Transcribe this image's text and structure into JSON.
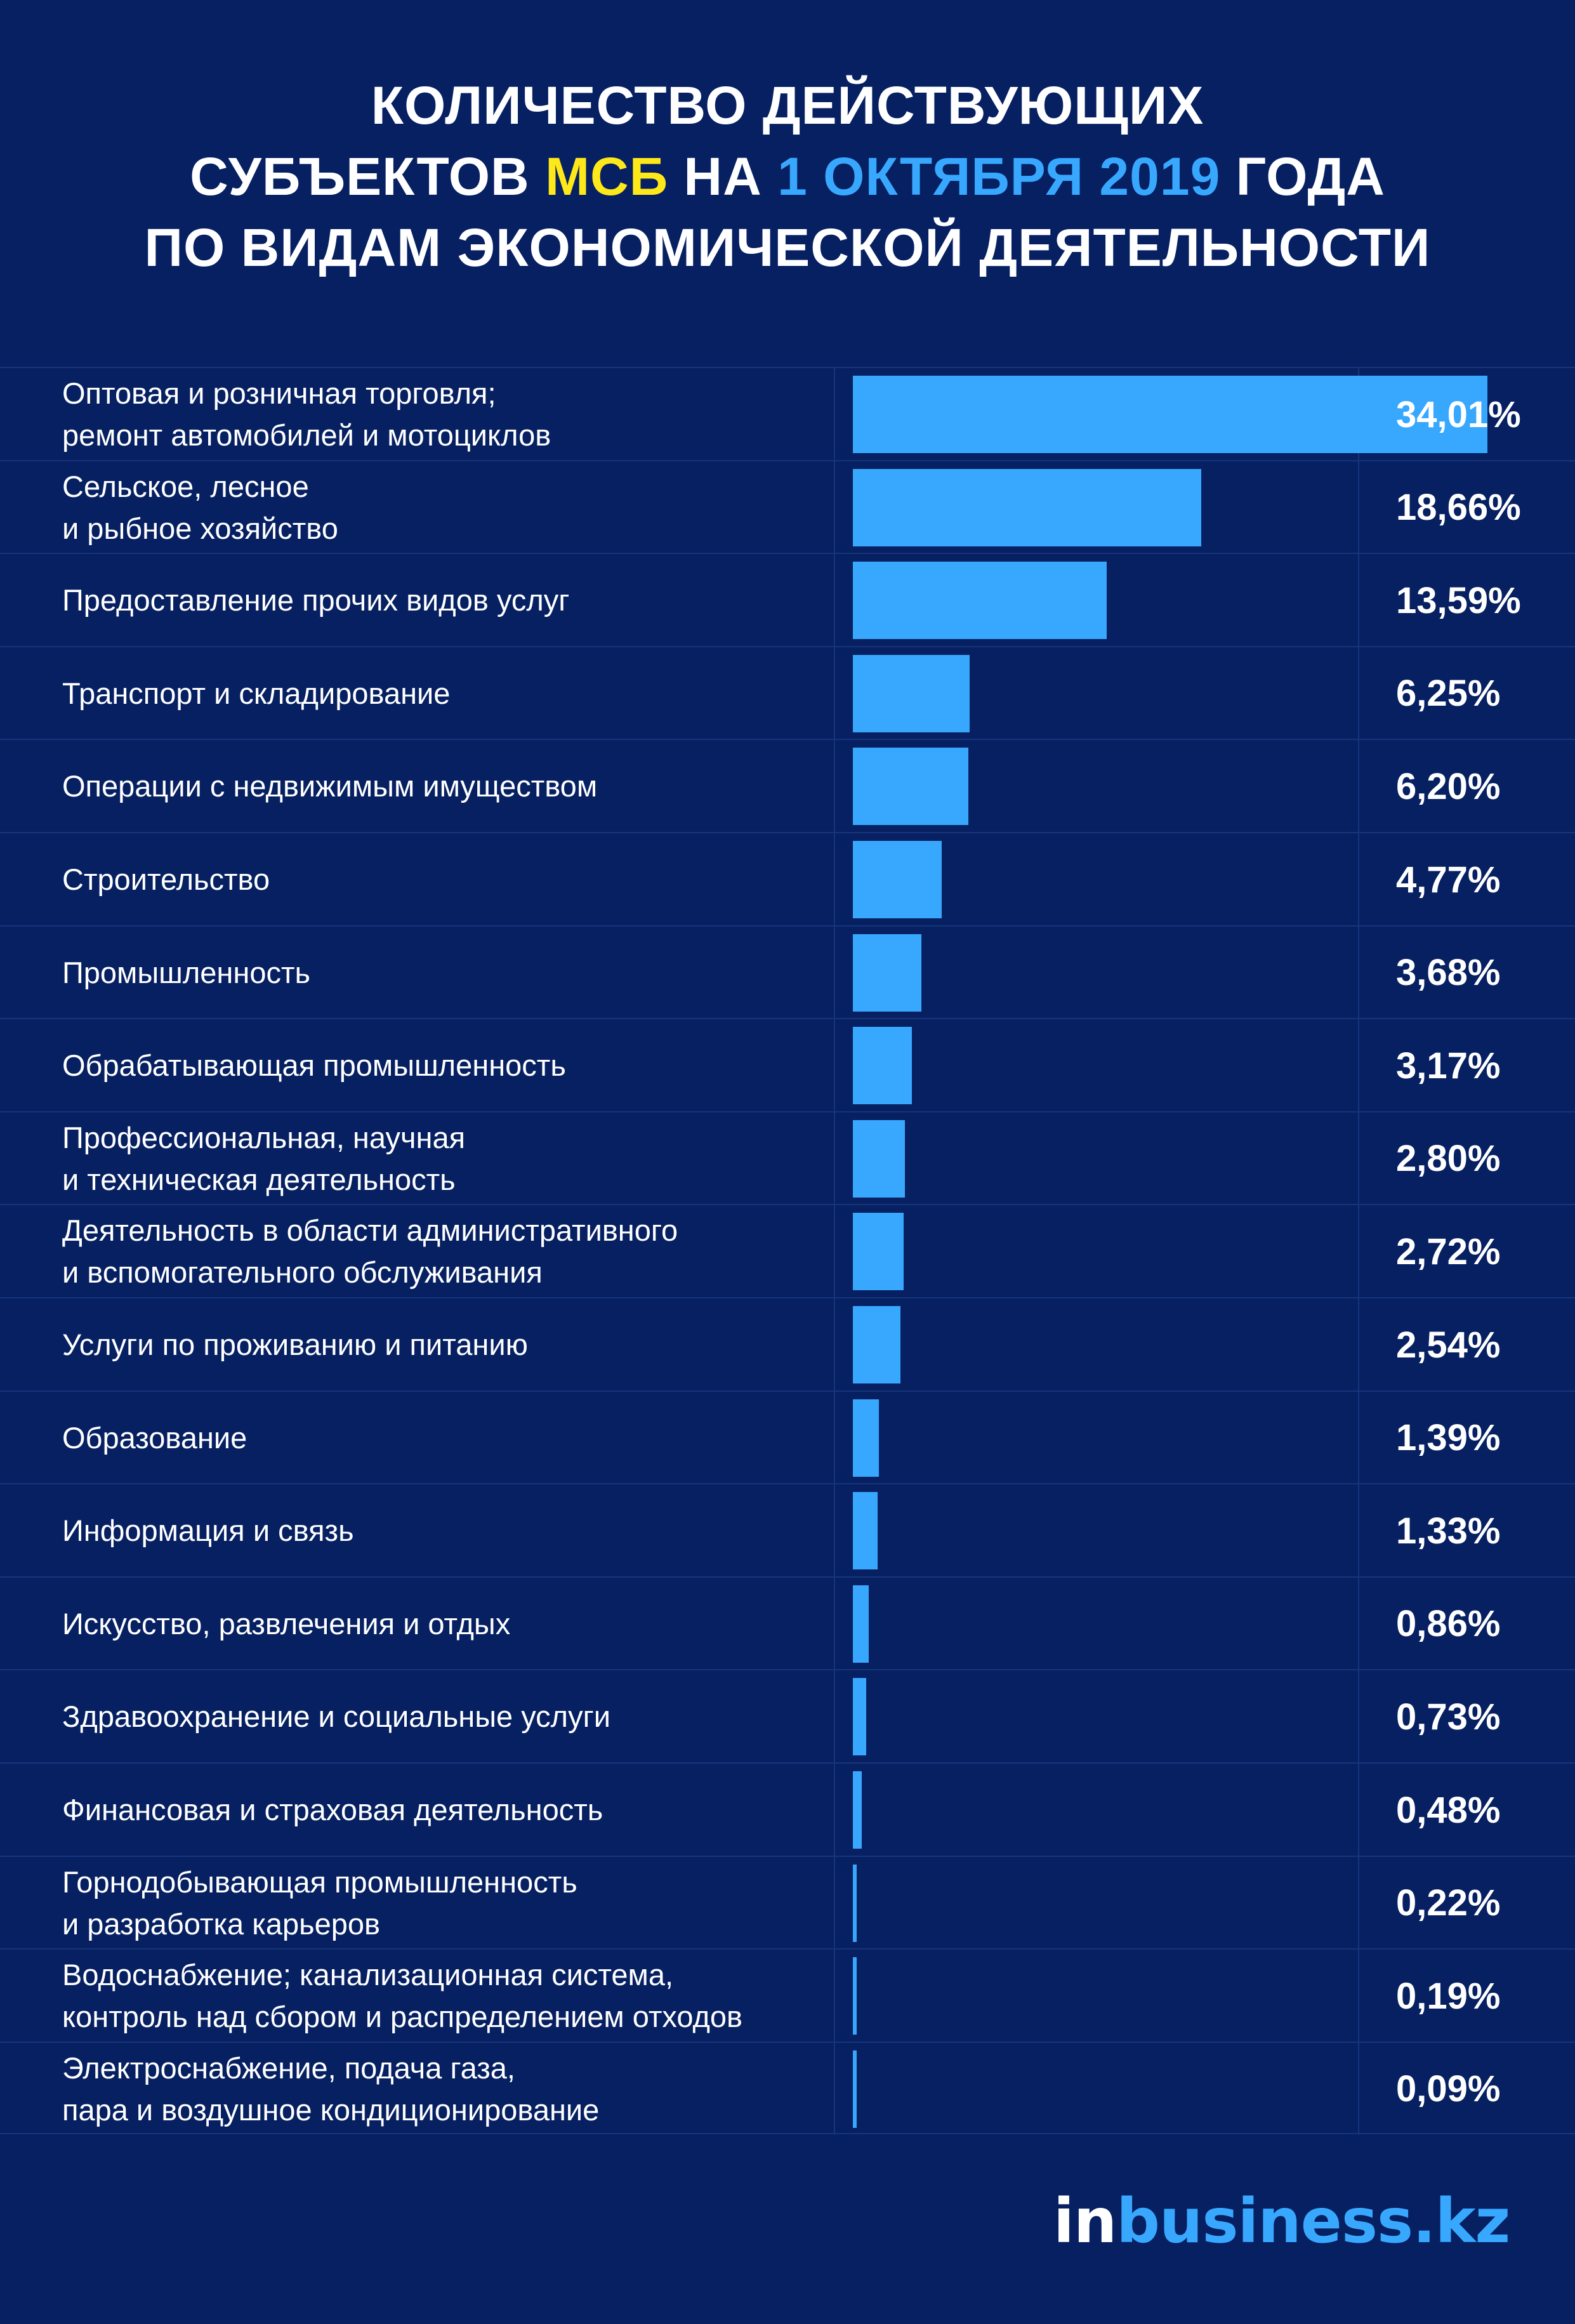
{
  "title": {
    "line1": "КОЛИЧЕСТВО ДЕЙСТВУЮЩИХ",
    "line2_a": "СУБЪЕКТОВ ",
    "line2_highlight_yellow": "МСБ",
    "line2_b": " НА ",
    "line2_highlight_blue": "1 ОКТЯБРЯ 2019",
    "line2_c": " ГОДА",
    "line3": "ПО ВИДАМ ЭКОНОМИЧЕСКОЙ ДЕЯТЕЛЬНОСТИ"
  },
  "colors": {
    "background": "#062062",
    "bar": "#38a8ff",
    "highlight_yellow": "#ffe81a",
    "highlight_blue": "#38a8ff",
    "grid": "#17357c"
  },
  "logo": {
    "part1": "in",
    "part2": "business.kz"
  },
  "chart_data": {
    "type": "bar",
    "orientation": "horizontal",
    "xlim": [
      0,
      34.01
    ],
    "categories": [
      "Оптовая и розничная торговля;\nремонт автомобилей и мотоциклов",
      "Сельское, лесное\nи рыбное хозяйство",
      "Предоставление прочих видов услуг",
      "Транспорт и складирование",
      "Операции с недвижимым имуществом",
      "Строительство",
      "Промышленность",
      "Обрабатывающая промышленность",
      "Профессиональная, научная\nи техническая деятельность",
      "Деятельность в области административного\nи вспомогательного обслуживания",
      "Услуги по проживанию и питанию",
      "Образование",
      "Информация и связь",
      "Искусство, развлечения и отдых",
      "Здравоохранение и социальные услуги",
      "Финансовая и страховая деятельность",
      "Горнодобывающая промышленность\nи разработка карьеров",
      "Водоснабжение; канализационная система,\nконтроль над сбором и распределением отходов",
      "Электроснабжение, подача газа,\nпара и воздушное  кондиционирование"
    ],
    "values": [
      34.01,
      18.66,
      13.59,
      6.25,
      6.2,
      4.77,
      3.68,
      3.17,
      2.8,
      2.72,
      2.54,
      1.39,
      1.33,
      0.86,
      0.73,
      0.48,
      0.22,
      0.19,
      0.09
    ],
    "value_labels": [
      "34,01%",
      "18,66%",
      "13,59%",
      "6,25%",
      "6,20%",
      "4,77%",
      "3,68%",
      "3,17%",
      "2,80%",
      "2,72%",
      "2,54%",
      "1,39%",
      "1,33%",
      "0,86%",
      "0,73%",
      "0,48%",
      "0,22%",
      "0,19%",
      "0,09%"
    ]
  }
}
